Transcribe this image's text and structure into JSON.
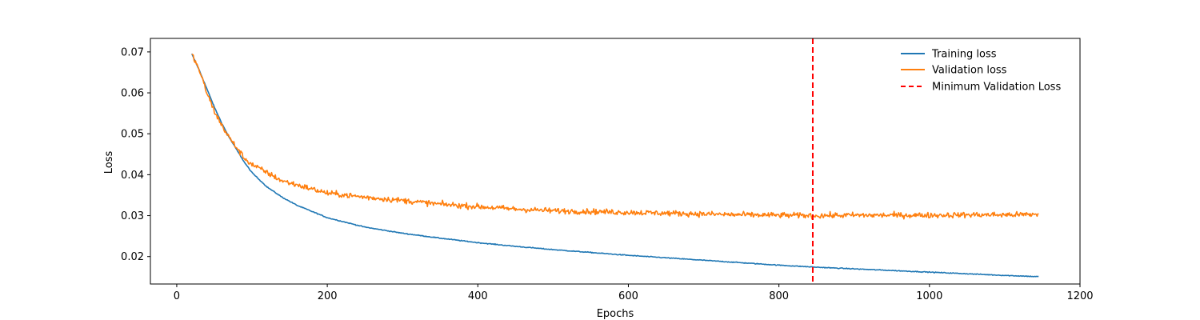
{
  "chart_data": {
    "type": "line",
    "xlabel": "Epochs",
    "ylabel": "Loss",
    "xlim": [
      -35,
      1200
    ],
    "ylim": [
      0.0133,
      0.0733
    ],
    "xticks": [
      0,
      200,
      400,
      600,
      800,
      1000,
      1200
    ],
    "yticks": [
      0.02,
      0.03,
      0.04,
      0.05,
      0.06,
      0.07
    ],
    "ytick_labels": [
      "0.02",
      "0.03",
      "0.04",
      "0.05",
      "0.06",
      "0.07"
    ],
    "grid": false,
    "legend_position": "top-right",
    "series": [
      {
        "name": "Training loss",
        "color": "#1f77b4",
        "style": "solid",
        "noise": 0.0001,
        "x": [
          20,
          30,
          40,
          50,
          60,
          70,
          80,
          90,
          100,
          120,
          140,
          160,
          180,
          200,
          250,
          300,
          350,
          400,
          450,
          500,
          550,
          600,
          650,
          700,
          750,
          800,
          850,
          900,
          950,
          1000,
          1050,
          1100,
          1145
        ],
        "y": [
          0.0695,
          0.0655,
          0.061,
          0.0565,
          0.0525,
          0.049,
          0.046,
          0.043,
          0.0405,
          0.037,
          0.0345,
          0.0325,
          0.031,
          0.0295,
          0.0272,
          0.0257,
          0.0245,
          0.0234,
          0.0225,
          0.0217,
          0.021,
          0.0203,
          0.0197,
          0.0191,
          0.0185,
          0.0179,
          0.0174,
          0.017,
          0.0166,
          0.0162,
          0.0158,
          0.0154,
          0.0151
        ]
      },
      {
        "name": "Validation loss",
        "color": "#ff7f0e",
        "style": "solid",
        "noise": 0.00065,
        "x": [
          20,
          30,
          40,
          50,
          60,
          70,
          80,
          90,
          100,
          120,
          140,
          160,
          180,
          200,
          250,
          300,
          350,
          400,
          450,
          500,
          550,
          600,
          650,
          700,
          750,
          800,
          850,
          900,
          950,
          1000,
          1050,
          1100,
          1145
        ],
        "y": [
          0.0695,
          0.0655,
          0.06,
          0.0555,
          0.052,
          0.049,
          0.0465,
          0.044,
          0.0425,
          0.0405,
          0.0385,
          0.0375,
          0.0365,
          0.0355,
          0.0345,
          0.0337,
          0.0328,
          0.0322,
          0.0316,
          0.0312,
          0.031,
          0.0308,
          0.0306,
          0.0304,
          0.0302,
          0.0301,
          0.03,
          0.0301,
          0.0301,
          0.0301,
          0.0302,
          0.0302,
          0.0303
        ]
      }
    ],
    "vlines": [
      {
        "name": "Minimum Validation Loss",
        "x": 845,
        "color": "#ff0000",
        "style": "dashed"
      }
    ]
  }
}
